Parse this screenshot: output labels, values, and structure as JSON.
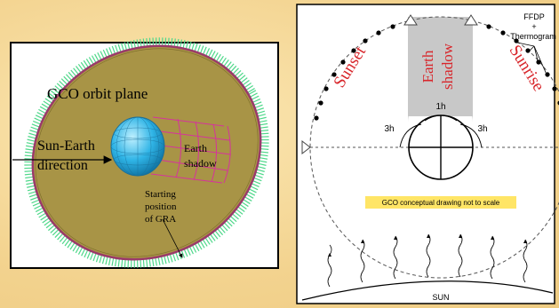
{
  "left_panel": {
    "orbit_plane_label": "GCO orbit plane",
    "sun_earth_line1": "Sun-Earth",
    "sun_earth_line2": "direction",
    "earth_shadow_line1": "Earth",
    "earth_shadow_line2": "shadow",
    "start_line1": "Starting",
    "start_line2": "position",
    "start_line3": "of GRA",
    "colors": {
      "disk": "#a89446",
      "earth": "#33b8e6",
      "shadow_grid": "#d6339c",
      "rim": "#9a3a6a",
      "rim_teeth": "#4fd88a"
    }
  },
  "right_panel": {
    "sunset_label": "Sunset",
    "earth_shadow_line1": "Earth",
    "earth_shadow_line2": "shadow",
    "sunrise_label": "Sunrise",
    "ffdp_line1": "FFDP",
    "ffdp_line2": "+",
    "ffdp_line3": "Thermogram",
    "label_1h": "1h",
    "label_3h_left": "3h",
    "label_3h_right": "3h",
    "note": "GCO conceptual drawing not to scale",
    "sun_label": "SUN",
    "colors": {
      "red_text": "#d8262b",
      "shadow_band": "#c8c8c8",
      "note_bg": "#ffe566"
    }
  }
}
